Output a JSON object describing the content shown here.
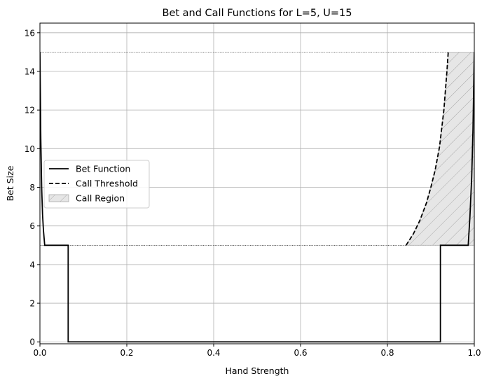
{
  "chart_data": {
    "type": "line",
    "title": "Bet and Call Functions for L=5, U=15",
    "xlabel": "Hand Strength",
    "ylabel": "Bet Size",
    "xlim": [
      0,
      1
    ],
    "ylim": [
      -0.1,
      16.5
    ],
    "xticks": [
      0,
      0.2,
      0.4,
      0.6,
      0.8,
      1.0
    ],
    "xtick_labels": [
      "0.0",
      "0.2",
      "0.4",
      "0.6",
      "0.8",
      "1.0"
    ],
    "yticks": [
      0,
      2,
      4,
      6,
      8,
      10,
      12,
      14,
      16
    ],
    "ytick_labels": [
      "0",
      "2",
      "4",
      "6",
      "8",
      "10",
      "12",
      "14",
      "16"
    ],
    "grid": true,
    "legend_position": "center-left",
    "reference_lines": [
      {
        "y": 5,
        "style": "dotted",
        "color": "#000000"
      },
      {
        "y": 15,
        "style": "dotted",
        "color": "#000000"
      }
    ],
    "series": [
      {
        "name": "Bet Function",
        "style": "solid",
        "color": "#000000",
        "points": [
          [
            0,
            15
          ],
          [
            0.002,
            10.5
          ],
          [
            0.004,
            8
          ],
          [
            0.006,
            6.6
          ],
          [
            0.008,
            5.8
          ],
          [
            0.011,
            5
          ],
          [
            0.065,
            5
          ],
          [
            0.065,
            0
          ],
          [
            0.922,
            0
          ],
          [
            0.922,
            5
          ],
          [
            0.986,
            5
          ],
          [
            0.99,
            6.5
          ],
          [
            0.994,
            8.5
          ],
          [
            0.997,
            11
          ],
          [
            1.0,
            15
          ]
        ]
      },
      {
        "name": "Call Threshold",
        "style": "dashed",
        "color": "#000000",
        "points": [
          [
            0.843,
            5
          ],
          [
            0.86,
            5.6
          ],
          [
            0.875,
            6.3
          ],
          [
            0.89,
            7.2
          ],
          [
            0.9,
            8.0
          ],
          [
            0.91,
            8.9
          ],
          [
            0.92,
            10.1
          ],
          [
            0.93,
            12.0
          ],
          [
            0.937,
            14.0
          ],
          [
            0.94,
            15
          ]
        ]
      },
      {
        "name": "Call Region",
        "style": "hatched-fill",
        "color": "#e6e6e6",
        "points": [
          [
            0.843,
            5
          ],
          [
            0.86,
            5.6
          ],
          [
            0.875,
            6.3
          ],
          [
            0.89,
            7.2
          ],
          [
            0.9,
            8.0
          ],
          [
            0.91,
            8.9
          ],
          [
            0.92,
            10.1
          ],
          [
            0.93,
            12.0
          ],
          [
            0.937,
            14.0
          ],
          [
            0.94,
            15
          ],
          [
            1.0,
            15
          ],
          [
            1.0,
            5
          ]
        ]
      }
    ]
  }
}
